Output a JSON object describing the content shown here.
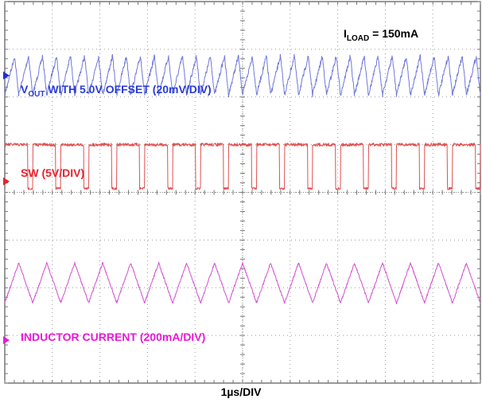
{
  "chart_data": {
    "type": "line",
    "title": "",
    "xlabel": "1µs/DIV",
    "x_divisions": 10,
    "y_divisions": 8,
    "annotation": {
      "main": "I",
      "sub": "LOAD",
      "rest": " = 150mA"
    },
    "series": [
      {
        "name_main": "V",
        "name_sub": "OUT",
        "name_rest": " WITH 5.0V OFFSET (20mV/DIV)",
        "color": "#2a3bd6",
        "trace_color": "#6f78d8",
        "shape": "sawtooth",
        "cycles": 34,
        "amplitude_div": 0.45,
        "level_div": 1.55
      },
      {
        "name": "SW (5V/DIV)",
        "color": "#e8232f",
        "trace_color": "#e05050",
        "shape": "pulse",
        "cycles": 17,
        "duty": 0.82,
        "high_div": 3.0,
        "low_div": 3.92
      },
      {
        "name": "INDUCTOR CURRENT (200mA/DIV)",
        "color": "#e81ad6",
        "trace_color": "#d44fd0",
        "shape": "triangle",
        "cycles": 17,
        "amplitude_div": 0.42,
        "level_div": 5.9
      }
    ],
    "grid": true,
    "ground_markers_colors": [
      "#1f2fd0",
      "#e8232f",
      "#e81ad6"
    ]
  }
}
